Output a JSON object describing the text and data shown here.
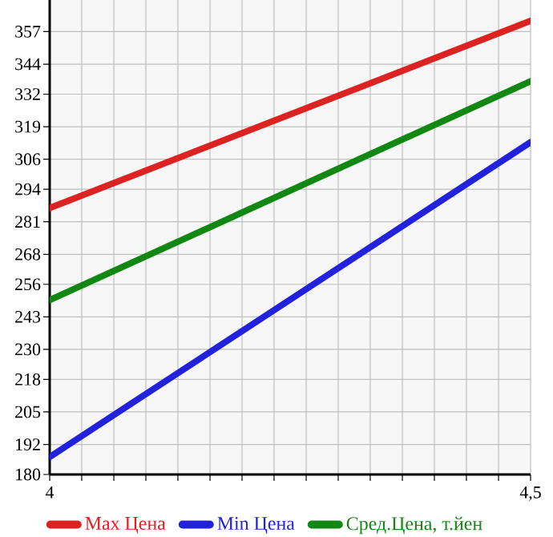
{
  "chart_data": {
    "type": "line",
    "x": [
      4,
      4.5
    ],
    "series": [
      {
        "name": "Max Цена",
        "color": "#dd2222",
        "values": [
          286.5,
          361.3
        ]
      },
      {
        "name": "Min Цена",
        "color": "#2222dd",
        "values": [
          187,
          312.8
        ]
      },
      {
        "name": "Сред.Цена, т.йен",
        "color": "#118811",
        "values": [
          249.7,
          337.2
        ]
      }
    ],
    "xlim": [
      4,
      4.5
    ],
    "xticks": [
      {
        "value": 4,
        "label": "4"
      },
      {
        "value": 4.0333,
        "label": null
      },
      {
        "value": 4.0667,
        "label": null
      },
      {
        "value": 4.1,
        "label": null
      },
      {
        "value": 4.1333,
        "label": null
      },
      {
        "value": 4.1667,
        "label": null
      },
      {
        "value": 4.2,
        "label": null
      },
      {
        "value": 4.2333,
        "label": null
      },
      {
        "value": 4.2667,
        "label": null
      },
      {
        "value": 4.3,
        "label": null
      },
      {
        "value": 4.3333,
        "label": null
      },
      {
        "value": 4.3667,
        "label": null
      },
      {
        "value": 4.4,
        "label": null
      },
      {
        "value": 4.4333,
        "label": null
      },
      {
        "value": 4.4667,
        "label": null
      },
      {
        "value": 4.5,
        "label": "4,5"
      }
    ],
    "ylim": [
      180,
      369.64
    ],
    "yticks": [
      180,
      192,
      205,
      218,
      230,
      243,
      256,
      268,
      281,
      294,
      306,
      319,
      332,
      344,
      357
    ],
    "grid": true,
    "legend": "bottom",
    "marker": "none",
    "line_style": "solid"
  }
}
